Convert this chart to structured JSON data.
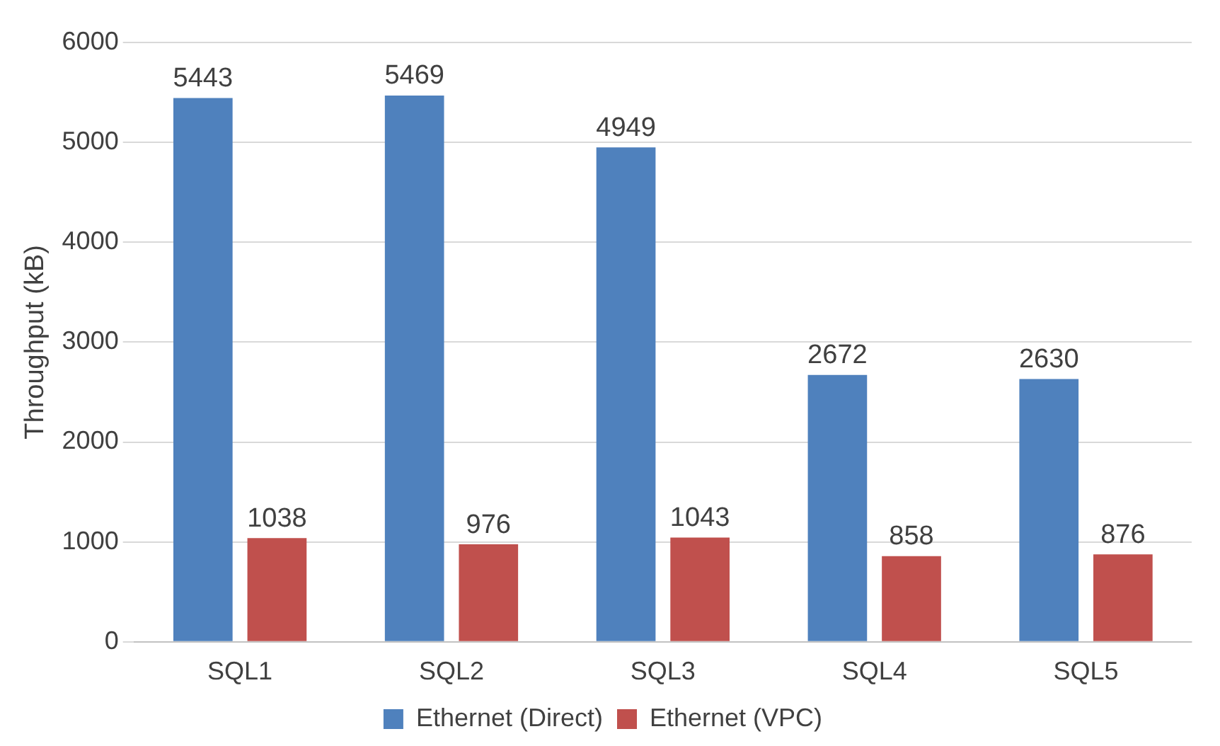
{
  "chart_data": {
    "type": "bar",
    "ylabel": "Throughput (kB)",
    "categories": [
      "SQL1",
      "SQL2",
      "SQL3",
      "SQL4",
      "SQL5"
    ],
    "series": [
      {
        "name": "Ethernet (Direct)",
        "color": "#4f81bd",
        "values": [
          5443,
          5469,
          4949,
          2672,
          2630
        ]
      },
      {
        "name": "Ethernet (VPC)",
        "color": "#c0504d",
        "values": [
          1038,
          976,
          1043,
          858,
          876
        ]
      }
    ],
    "ylim": [
      0,
      6000
    ],
    "yticks": [
      0,
      1000,
      2000,
      3000,
      4000,
      5000,
      6000
    ],
    "grid": "y",
    "legend": "bottom",
    "data_labels": true
  }
}
